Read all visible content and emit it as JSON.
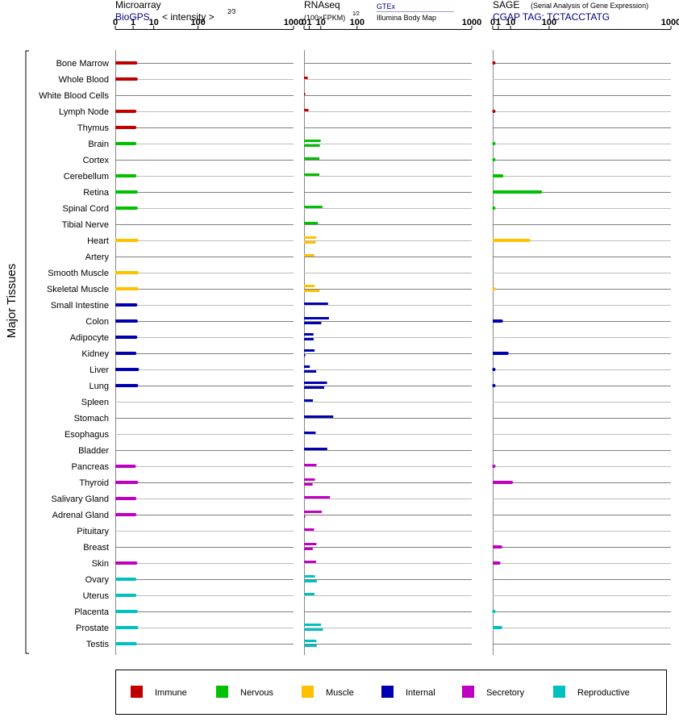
{
  "chart_data": {
    "type": "bar",
    "y_axis_title": "Major Tissues",
    "groups": [
      {
        "name": "Immune",
        "color": "#c00000"
      },
      {
        "name": "Nervous",
        "color": "#00c000"
      },
      {
        "name": "Muscle",
        "color": "#ffc000"
      },
      {
        "name": "Internal",
        "color": "#0000b0"
      },
      {
        "name": "Secretory",
        "color": "#c000c0"
      },
      {
        "name": "Reproductive",
        "color": "#00c0c0"
      }
    ],
    "tissues": [
      {
        "name": "Bone Marrow",
        "group": 0
      },
      {
        "name": "Whole Blood",
        "group": 0
      },
      {
        "name": "White Blood Cells",
        "group": 0
      },
      {
        "name": "Lymph Node",
        "group": 0
      },
      {
        "name": "Thymus",
        "group": 0
      },
      {
        "name": "Brain",
        "group": 1
      },
      {
        "name": "Cortex",
        "group": 1
      },
      {
        "name": "Cerebellum",
        "group": 1
      },
      {
        "name": "Retina",
        "group": 1
      },
      {
        "name": "Spinal Cord",
        "group": 1
      },
      {
        "name": "Tibial Nerve",
        "group": 1
      },
      {
        "name": "Heart",
        "group": 2
      },
      {
        "name": "Artery",
        "group": 2
      },
      {
        "name": "Smooth Muscle",
        "group": 2
      },
      {
        "name": "Skeletal Muscle",
        "group": 2
      },
      {
        "name": "Small Intestine",
        "group": 3
      },
      {
        "name": "Colon",
        "group": 3
      },
      {
        "name": "Adipocyte",
        "group": 3
      },
      {
        "name": "Kidney",
        "group": 3
      },
      {
        "name": "Liver",
        "group": 3
      },
      {
        "name": "Lung",
        "group": 3
      },
      {
        "name": "Spleen",
        "group": 3
      },
      {
        "name": "Stomach",
        "group": 3
      },
      {
        "name": "Esophagus",
        "group": 3
      },
      {
        "name": "Bladder",
        "group": 3
      },
      {
        "name": "Pancreas",
        "group": 4
      },
      {
        "name": "Thyroid",
        "group": 4
      },
      {
        "name": "Salivary Gland",
        "group": 4
      },
      {
        "name": "Adrenal Gland",
        "group": 4
      },
      {
        "name": "Pituitary",
        "group": 4
      },
      {
        "name": "Breast",
        "group": 4
      },
      {
        "name": "Skin",
        "group": 4
      },
      {
        "name": "Ovary",
        "group": 5
      },
      {
        "name": "Uterus",
        "group": 5
      },
      {
        "name": "Placenta",
        "group": 5
      },
      {
        "name": "Prostate",
        "group": 5
      },
      {
        "name": "Testis",
        "group": 5
      }
    ],
    "panels": [
      {
        "id": "microarray",
        "title": "Microarray",
        "source": "BioGPS",
        "unit_label": "< intensity >",
        "unit_exponent": "2⁄3",
        "scale": "cube-root",
        "ticks": [
          "0",
          "1",
          "10",
          "100",
          "1000"
        ],
        "xlim": [
          0,
          1000
        ],
        "values": [
          [
            1.5
          ],
          [
            1.6
          ],
          [],
          [
            1.3
          ],
          [
            1.3
          ],
          [
            1.3
          ],
          [],
          [
            1.3
          ],
          [
            1.6
          ],
          [
            1.6
          ],
          [],
          [
            1.8
          ],
          [],
          [
            1.8
          ],
          [
            1.8
          ],
          [
            1.5
          ],
          [
            1.6
          ],
          [
            1.5
          ],
          [
            1.3
          ],
          [
            1.9
          ],
          [
            1.7
          ],
          [],
          [],
          [],
          [],
          [
            1.2
          ],
          [
            1.7
          ],
          [
            1.3
          ],
          [
            1.3
          ],
          [],
          [],
          [
            1.5
          ],
          [
            1.3
          ],
          [
            1.3
          ],
          [
            1.6
          ],
          [
            1.7
          ],
          [
            1.4
          ]
        ]
      },
      {
        "id": "rnaseq",
        "title": "RNAseq",
        "unit_label": "(100×FPKM)",
        "unit_exponent": "1⁄2",
        "sources": [
          "GTEx",
          "Illumina Body Map"
        ],
        "scale": "square-root",
        "ticks": [
          "0",
          "1",
          "10",
          "100",
          "1000"
        ],
        "xlim": [
          0,
          1000
        ],
        "values": [
          [],
          [
            0.5
          ],
          [
            0.0
          ],
          [
            0.7
          ],
          [],
          [
            9.9,
            8.9
          ],
          [
            8.4
          ],
          [
            8.4
          ],
          [],
          [
            12.0
          ],
          [
            6.9
          ],
          [
            5.3,
            4.8
          ],
          [
            3.8
          ],
          [],
          [
            4.0,
            8.4
          ],
          [
            20.5
          ],
          [
            22.1,
            10.6
          ],
          [
            3.2,
            3.3
          ],
          [
            4.0,
            0.0
          ],
          [
            1.2,
            5.3
          ],
          [
            18.8,
            14.4
          ],
          [
            2.8
          ],
          [
            30.4
          ],
          [
            4.8
          ],
          [
            19.2
          ],
          [
            5.5
          ],
          [
            4.2,
            2.6
          ],
          [
            24.0
          ],
          [
            11.3,
            0.0
          ],
          [
            3.6
          ],
          [
            5.5,
            2.7
          ],
          [
            5.1
          ],
          [
            4.3,
            5.8
          ],
          [
            3.9
          ],
          [],
          [
            10.3,
            12.7
          ],
          [
            5.5,
            5.8
          ]
        ]
      },
      {
        "id": "sage",
        "title": "SAGE",
        "subtitle": "(Serial Analysis of Gene Expression)",
        "tag_label": "CGAP TAG: TCTACCTATG",
        "scale": "square-root",
        "ticks": [
          "0",
          "1",
          "10",
          "100",
          "1000"
        ],
        "xlim": [
          0,
          1000
        ],
        "values": [
          [
            0.03
          ],
          [],
          [],
          [
            0.03
          ],
          [],
          [
            0.01
          ],
          [
            0.01
          ],
          [
            2.6
          ],
          [
            72
          ],
          [
            0.01
          ],
          [],
          [
            41
          ],
          [],
          [],
          [
            0.01
          ],
          [],
          [
            2.3
          ],
          [],
          [
            6.5
          ],
          [
            0.03
          ],
          [
            0.03
          ],
          [],
          [],
          [],
          [],
          [
            0.03
          ],
          [
            11
          ],
          [],
          [],
          [],
          [
            2.0
          ],
          [
            1.2
          ],
          [],
          [],
          [
            0.01
          ],
          [
            2.0
          ],
          []
        ]
      }
    ]
  }
}
